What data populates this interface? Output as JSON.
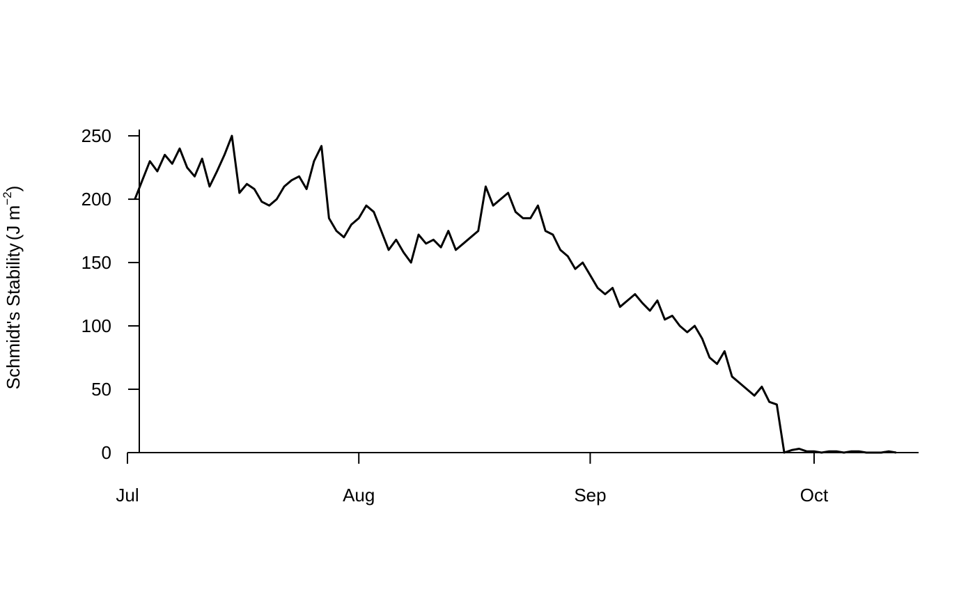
{
  "chart_data": {
    "type": "line",
    "title": "",
    "xlabel": "",
    "ylabel": {
      "text": "Schmidt's Stability",
      "unit_open": "(J m",
      "unit_exponent": "−2",
      "unit_close": ")"
    },
    "ylim": [
      0,
      255
    ],
    "xlim": [
      "2012-07-01",
      "2012-10-15"
    ],
    "y_ticks": [
      0,
      50,
      100,
      150,
      200,
      250
    ],
    "x_ticks": [
      {
        "date": "2012-07-01",
        "label": "Jul"
      },
      {
        "date": "2012-08-01",
        "label": "Aug"
      },
      {
        "date": "2012-09-01",
        "label": "Sep"
      },
      {
        "date": "2012-10-01",
        "label": "Oct"
      }
    ],
    "grid": false,
    "legend": "none",
    "series": [
      {
        "color": "#000000",
        "x": [
          "2012-07-02",
          "2012-07-03",
          "2012-07-04",
          "2012-07-05",
          "2012-07-06",
          "2012-07-07",
          "2012-07-08",
          "2012-07-09",
          "2012-07-10",
          "2012-07-11",
          "2012-07-12",
          "2012-07-13",
          "2012-07-14",
          "2012-07-15",
          "2012-07-16",
          "2012-07-17",
          "2012-07-18",
          "2012-07-19",
          "2012-07-20",
          "2012-07-21",
          "2012-07-22",
          "2012-07-23",
          "2012-07-24",
          "2012-07-25",
          "2012-07-26",
          "2012-07-27",
          "2012-07-28",
          "2012-07-29",
          "2012-07-30",
          "2012-07-31",
          "2012-08-01",
          "2012-08-02",
          "2012-08-03",
          "2012-08-04",
          "2012-08-05",
          "2012-08-06",
          "2012-08-07",
          "2012-08-08",
          "2012-08-09",
          "2012-08-10",
          "2012-08-11",
          "2012-08-12",
          "2012-08-13",
          "2012-08-14",
          "2012-08-15",
          "2012-08-16",
          "2012-08-17",
          "2012-08-18",
          "2012-08-19",
          "2012-08-20",
          "2012-08-21",
          "2012-08-22",
          "2012-08-23",
          "2012-08-24",
          "2012-08-25",
          "2012-08-26",
          "2012-08-27",
          "2012-08-28",
          "2012-08-29",
          "2012-08-30",
          "2012-08-31",
          "2012-09-01",
          "2012-09-02",
          "2012-09-03",
          "2012-09-04",
          "2012-09-05",
          "2012-09-06",
          "2012-09-07",
          "2012-09-08",
          "2012-09-09",
          "2012-09-10",
          "2012-09-11",
          "2012-09-12",
          "2012-09-13",
          "2012-09-14",
          "2012-09-15",
          "2012-09-16",
          "2012-09-17",
          "2012-09-18",
          "2012-09-19",
          "2012-09-20",
          "2012-09-21",
          "2012-09-22",
          "2012-09-23",
          "2012-09-24",
          "2012-09-25",
          "2012-09-26",
          "2012-09-27",
          "2012-09-28",
          "2012-09-29",
          "2012-09-30",
          "2012-10-01",
          "2012-10-02",
          "2012-10-03",
          "2012-10-04",
          "2012-10-05",
          "2012-10-06",
          "2012-10-07",
          "2012-10-08",
          "2012-10-09",
          "2012-10-10",
          "2012-10-11",
          "2012-10-12"
        ],
        "y": [
          200,
          215,
          230,
          222,
          235,
          228,
          240,
          225,
          218,
          232,
          210,
          222,
          235,
          250,
          205,
          212,
          208,
          198,
          195,
          200,
          210,
          215,
          218,
          208,
          230,
          242,
          185,
          175,
          170,
          180,
          185,
          195,
          190,
          175,
          160,
          168,
          158,
          150,
          172,
          165,
          168,
          162,
          175,
          160,
          165,
          170,
          175,
          210,
          195,
          200,
          205,
          190,
          185,
          185,
          195,
          175,
          172,
          160,
          155,
          145,
          150,
          140,
          130,
          125,
          130,
          115,
          120,
          125,
          118,
          112,
          120,
          105,
          108,
          100,
          95,
          100,
          90,
          75,
          70,
          80,
          60,
          55,
          50,
          45,
          52,
          40,
          38,
          0,
          2,
          3,
          1,
          1,
          0,
          1,
          1,
          0,
          1,
          1,
          0,
          0,
          0,
          1,
          0
        ]
      }
    ]
  }
}
